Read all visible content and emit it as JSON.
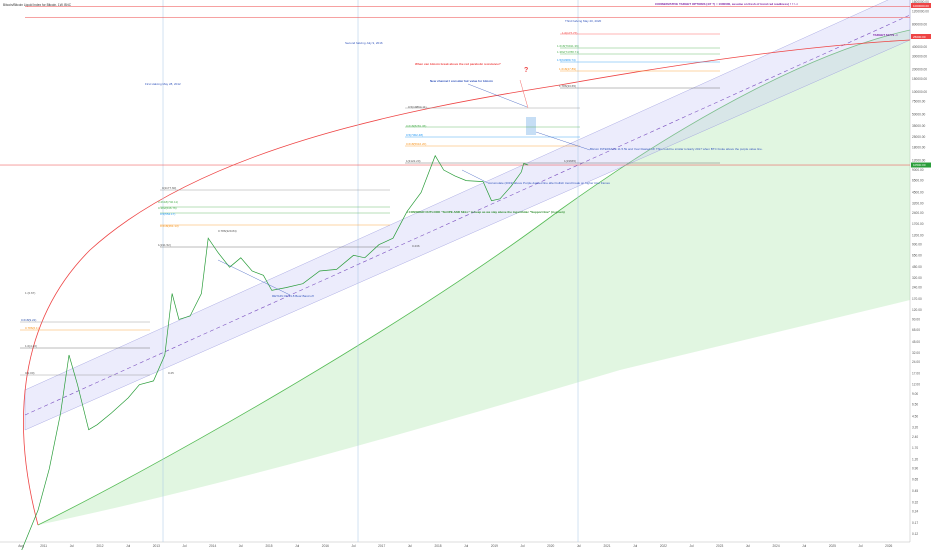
{
  "symbol_header": "Bitcoin/Bitcoin Liquid Index for Bitcoin, 1W, BNC",
  "chart_data": {
    "type": "line",
    "title": "",
    "scale": "log",
    "ylim": [
      0.1,
      1600000
    ],
    "x_tick_labels": [
      "Aug",
      "2011",
      "Jul",
      "2012",
      "Jul",
      "2013",
      "Jul",
      "2014",
      "Jul",
      "2015",
      "Jul",
      "2016",
      "Jul",
      "2017",
      "Jul",
      "2018",
      "Jul",
      "2019",
      "Jul",
      "2020",
      "Jul",
      "2021",
      "Jul",
      "2022",
      "Jul",
      "2023",
      "Jul",
      "2024",
      "Jul",
      "2025",
      "Jul",
      "2026"
    ],
    "y_tick_labels": [
      "1600000.00",
      "1200000.00",
      "800000.00",
      "550000.00",
      "400000.00",
      "300000.00",
      "200000.00",
      "150000.00",
      "100000.00",
      "75000.00",
      "50000.00",
      "35000.00",
      "25000.00",
      "18000.00",
      "12000.00",
      "9000.00",
      "6500.00",
      "4500.00",
      "3200.00",
      "2400.00",
      "1700.00",
      "1200.00",
      "900.00",
      "650.00",
      "450.00",
      "320.00",
      "240.00",
      "170.00",
      "120.00",
      "90.00",
      "65.00",
      "45.00",
      "32.00",
      "24.00",
      "17.00",
      "12.00",
      "9.00",
      "6.50",
      "4.50",
      "3.20",
      "2.40",
      "1.70",
      "1.20",
      "0.90",
      "0.65",
      "0.45",
      "0.32",
      "0.24",
      "0.17",
      "0.12"
    ],
    "series": [
      {
        "name": "BTC",
        "points": [
          [
            2010.6,
            0.07
          ],
          [
            2010.9,
            0.25
          ],
          [
            2011.1,
            0.9
          ],
          [
            2011.3,
            5
          ],
          [
            2011.45,
            30
          ],
          [
            2011.6,
            12
          ],
          [
            2011.8,
            3
          ],
          [
            2011.95,
            3.5
          ],
          [
            2012.2,
            5
          ],
          [
            2012.5,
            8
          ],
          [
            2012.7,
            12
          ],
          [
            2012.95,
            13.5
          ],
          [
            2013.15,
            30
          ],
          [
            2013.28,
            200
          ],
          [
            2013.4,
            90
          ],
          [
            2013.6,
            100
          ],
          [
            2013.8,
            200
          ],
          [
            2013.92,
            1100
          ],
          [
            2014.1,
            700
          ],
          [
            2014.3,
            450
          ],
          [
            2014.5,
            600
          ],
          [
            2014.7,
            400
          ],
          [
            2014.9,
            350
          ],
          [
            2015.05,
            220
          ],
          [
            2015.3,
            240
          ],
          [
            2015.6,
            270
          ],
          [
            2015.9,
            400
          ],
          [
            2016.2,
            420
          ],
          [
            2016.5,
            650
          ],
          [
            2016.7,
            600
          ],
          [
            2016.95,
            900
          ],
          [
            2017.2,
            1100
          ],
          [
            2017.45,
            2500
          ],
          [
            2017.7,
            4500
          ],
          [
            2017.95,
            14000
          ],
          [
            2018.1,
            9000
          ],
          [
            2018.3,
            7500
          ],
          [
            2018.5,
            6500
          ],
          [
            2018.8,
            6300
          ],
          [
            2018.95,
            3500
          ],
          [
            2019.1,
            3700
          ],
          [
            2019.3,
            5500
          ],
          [
            2019.48,
            8500
          ],
          [
            2019.52,
            11000
          ],
          [
            2019.6,
            10500
          ]
        ]
      }
    ],
    "last_price": "10500.00",
    "reference_lines": [
      {
        "name": "conservative-target",
        "value": 1000000
      },
      {
        "name": "target-line",
        "value": 1400000
      },
      {
        "name": "current-price-line",
        "value": 10500
      }
    ],
    "annotations": [
      "CONSERVATIVE TARGET OPTIONS (4/7 ?) = 1000000, assume on fresh of trend red readiness) ! ! ! ->",
      "TARGET $177k ->",
      "When can bitcoin break above the red parabolic resistance?",
      "?",
      "New channel I consider fair value for bitcoin",
      "Bitcoin INTERFACE 11.5.5k and Year blasted off. This could be similar to Early 2017 when BTC broke above the purple value line.",
      "Accumulate (2019) above Purple dashed line after bullish trend break on higher time frames",
      "I CONSIDER OUTLOOK \"SLOPE AND SELL\" to keep as we stay above the logarithmic \"Support line\" (in green)",
      "RETAIN OF 91.8 Bear Band off",
      "First Halving May 28, 2012",
      "Second halving July 9, 2016",
      "Third halving May 20, 2020"
    ],
    "grid": false,
    "legend": "none"
  },
  "fib_labels_2011": [
    "1 (0.67)",
    "0.618(9.22)",
    "0.786(6.1)",
    "1.0(4.40)",
    "0(2.00)",
    "0.25"
  ],
  "fib_labels_2013": [
    "0(1177.60)",
    "0.2618(740.11)",
    "0.382(646.76)",
    "0.5(554.17)",
    "0.618(461.13)",
    "0.786(329.84)",
    "1(191.52)",
    "0.236"
  ],
  "fib_labels_2017": [
    "0.5(19864.11)",
    "0.618(8281.36)",
    "0.5(7302.48)",
    "0.618(5916.20)",
    "1(3122.20)",
    "1(19665)"
  ],
  "fib_labels_2020": [
    "1.0(177.77)",
    "1.618(79911.36)",
    "1.382(74788.71)",
    "1.5(63389.74)",
    "1.618(47.89)",
    "1.786(33.65)"
  ],
  "price_tag": "10500.00",
  "target_tag": "1000000.00",
  "orange_tag": "25000.00"
}
